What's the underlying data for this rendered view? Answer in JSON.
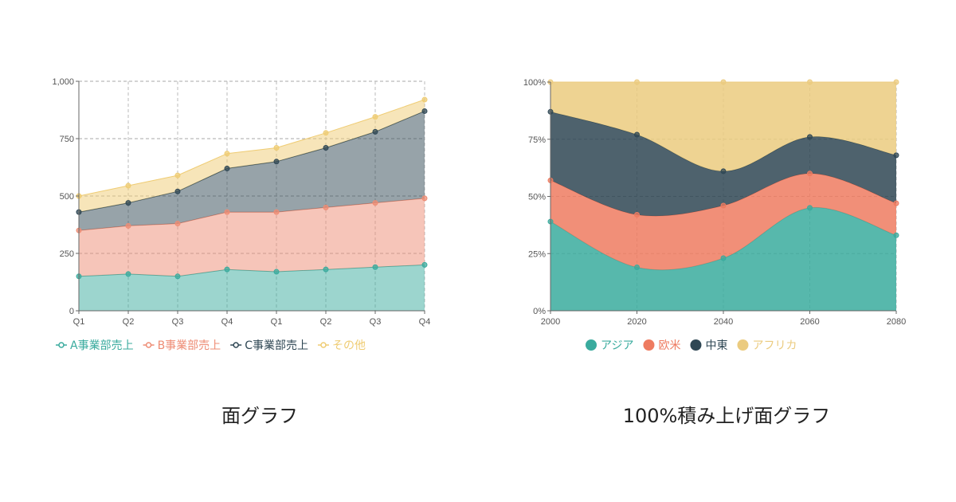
{
  "chart_data": [
    {
      "type": "area",
      "stacked": true,
      "title": "面グラフ",
      "categories": [
        "Q1",
        "Q2",
        "Q3",
        "Q4",
        "Q1",
        "Q2",
        "Q3",
        "Q4"
      ],
      "ylim": [
        0,
        1000
      ],
      "yticks": [
        0,
        250,
        500,
        750,
        1000
      ],
      "ytick_labels": [
        "0",
        "250",
        "500",
        "750",
        "1,000"
      ],
      "grid": true,
      "legend": "bottom",
      "series": [
        {
          "name": "A事業部売上",
          "color": "#3aab9e",
          "values": [
            150,
            160,
            150,
            180,
            170,
            180,
            190,
            200
          ]
        },
        {
          "name": "B事業部売上",
          "color": "#ee8c74",
          "values": [
            200,
            210,
            230,
            250,
            260,
            270,
            280,
            290
          ]
        },
        {
          "name": "C事業部売上",
          "color": "#2f4754",
          "values": [
            80,
            100,
            140,
            190,
            220,
            260,
            310,
            380
          ]
        },
        {
          "name": "その他",
          "color": "#efcc73",
          "values": [
            70,
            75,
            70,
            65,
            60,
            65,
            65,
            50
          ]
        }
      ]
    },
    {
      "type": "area",
      "stacked": true,
      "normalized": true,
      "title": "100%積み上げ面グラフ",
      "categories": [
        "2000",
        "2020",
        "2040",
        "2060",
        "2080"
      ],
      "ylim": [
        0,
        100
      ],
      "yticks": [
        0,
        25,
        50,
        75,
        100
      ],
      "ytick_labels": [
        "0%",
        "25%",
        "50%",
        "75%",
        "100%"
      ],
      "grid": true,
      "legend": "bottom",
      "series": [
        {
          "name": "アジア",
          "color": "#3aab9e",
          "values": [
            39,
            19,
            23,
            45,
            33
          ]
        },
        {
          "name": "欧米",
          "color": "#ee7b60",
          "values": [
            18,
            23,
            23,
            15,
            14
          ]
        },
        {
          "name": "中東",
          "color": "#2f4754",
          "values": [
            30,
            35,
            15,
            16,
            21
          ]
        },
        {
          "name": "アフリカ",
          "color": "#ebcb7f",
          "values": [
            13,
            23,
            39,
            24,
            32
          ]
        }
      ]
    }
  ]
}
